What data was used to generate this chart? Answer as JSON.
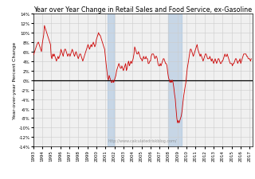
{
  "title": "Year over Year Change in Retail Sales and Food Service, ex-Gasoline",
  "ylabel": "Year-over-year Percent Change",
  "watermark": "http://www.calculatedriskblog.com/",
  "ylim": [
    -14,
    14
  ],
  "yticks": [
    -14,
    -12,
    -10,
    -8,
    -6,
    -4,
    -2,
    0,
    2,
    4,
    6,
    8,
    10,
    12,
    14
  ],
  "recession_shades": [
    {
      "xmin": 2001.25,
      "xmax": 2001.92
    },
    {
      "xmin": 2007.92,
      "xmax": 2009.5
    }
  ],
  "line_color": "#cc0000",
  "recession_color": "#adc6e0",
  "recession_alpha": 0.6,
  "background_color": "#f0f0f0",
  "grid_color": "#cccccc",
  "zero_line_color": "black",
  "title_fontsize": 5.8,
  "label_fontsize": 4.5,
  "tick_fontsize": 4.0,
  "watermark_fontsize": 3.5,
  "xlim": [
    1993,
    2017.3
  ],
  "data_x": [
    1993.0,
    1993.08,
    1993.17,
    1993.25,
    1993.33,
    1993.42,
    1993.5,
    1993.58,
    1993.67,
    1993.75,
    1993.83,
    1993.92,
    1994.0,
    1994.08,
    1994.17,
    1994.25,
    1994.33,
    1994.42,
    1994.5,
    1994.58,
    1994.67,
    1994.75,
    1994.83,
    1994.92,
    1995.0,
    1995.08,
    1995.17,
    1995.25,
    1995.33,
    1995.42,
    1995.5,
    1995.58,
    1995.67,
    1995.75,
    1995.83,
    1995.92,
    1996.0,
    1996.08,
    1996.17,
    1996.25,
    1996.33,
    1996.42,
    1996.5,
    1996.58,
    1996.67,
    1996.75,
    1996.83,
    1996.92,
    1997.0,
    1997.08,
    1997.17,
    1997.25,
    1997.33,
    1997.42,
    1997.5,
    1997.58,
    1997.67,
    1997.75,
    1997.83,
    1997.92,
    1998.0,
    1998.08,
    1998.17,
    1998.25,
    1998.33,
    1998.42,
    1998.5,
    1998.58,
    1998.67,
    1998.75,
    1998.83,
    1998.92,
    1999.0,
    1999.08,
    1999.17,
    1999.25,
    1999.33,
    1999.42,
    1999.5,
    1999.58,
    1999.67,
    1999.75,
    1999.83,
    1999.92,
    2000.0,
    2000.08,
    2000.17,
    2000.25,
    2000.33,
    2000.42,
    2000.5,
    2000.58,
    2000.67,
    2000.75,
    2000.83,
    2000.92,
    2001.0,
    2001.08,
    2001.17,
    2001.25,
    2001.33,
    2001.42,
    2001.5,
    2001.58,
    2001.67,
    2001.75,
    2001.83,
    2001.92,
    2002.0,
    2002.08,
    2002.17,
    2002.25,
    2002.33,
    2002.42,
    2002.5,
    2002.58,
    2002.67,
    2002.75,
    2002.83,
    2002.92,
    2003.0,
    2003.08,
    2003.17,
    2003.25,
    2003.33,
    2003.42,
    2003.5,
    2003.58,
    2003.67,
    2003.75,
    2003.83,
    2003.92,
    2004.0,
    2004.08,
    2004.17,
    2004.25,
    2004.33,
    2004.42,
    2004.5,
    2004.58,
    2004.67,
    2004.75,
    2004.83,
    2004.92,
    2005.0,
    2005.08,
    2005.17,
    2005.25,
    2005.33,
    2005.42,
    2005.5,
    2005.58,
    2005.67,
    2005.75,
    2005.83,
    2005.92,
    2006.0,
    2006.08,
    2006.17,
    2006.25,
    2006.33,
    2006.42,
    2006.5,
    2006.58,
    2006.67,
    2006.75,
    2006.83,
    2006.92,
    2007.0,
    2007.08,
    2007.17,
    2007.25,
    2007.33,
    2007.42,
    2007.5,
    2007.58,
    2007.67,
    2007.75,
    2007.83,
    2007.92,
    2008.0,
    2008.08,
    2008.17,
    2008.25,
    2008.33,
    2008.42,
    2008.5,
    2008.58,
    2008.67,
    2008.75,
    2008.83,
    2008.92,
    2009.0,
    2009.08,
    2009.17,
    2009.25,
    2009.33,
    2009.42,
    2009.5,
    2009.58,
    2009.67,
    2009.75,
    2009.83,
    2009.92,
    2010.0,
    2010.08,
    2010.17,
    2010.25,
    2010.33,
    2010.42,
    2010.5,
    2010.58,
    2010.67,
    2010.75,
    2010.83,
    2010.92,
    2011.0,
    2011.08,
    2011.17,
    2011.25,
    2011.33,
    2011.42,
    2011.5,
    2011.58,
    2011.67,
    2011.75,
    2011.83,
    2011.92,
    2012.0,
    2012.08,
    2012.17,
    2012.25,
    2012.33,
    2012.42,
    2012.5,
    2012.58,
    2012.67,
    2012.75,
    2012.83,
    2012.92,
    2013.0,
    2013.08,
    2013.17,
    2013.25,
    2013.33,
    2013.42,
    2013.5,
    2013.58,
    2013.67,
    2013.75,
    2013.83,
    2013.92,
    2014.0,
    2014.08,
    2014.17,
    2014.25,
    2014.33,
    2014.42,
    2014.5,
    2014.58,
    2014.67,
    2014.75,
    2014.83,
    2014.92,
    2015.0,
    2015.08,
    2015.17,
    2015.25,
    2015.33,
    2015.42,
    2015.5,
    2015.58,
    2015.67,
    2015.75,
    2015.83,
    2015.92,
    2016.0,
    2016.08,
    2016.17,
    2016.25,
    2016.33,
    2016.42,
    2016.5,
    2016.58,
    2016.67,
    2016.75,
    2016.83,
    2016.92,
    2017.0,
    2017.08,
    2017.17
  ],
  "data_y": [
    5.2,
    5.5,
    6.0,
    6.5,
    7.0,
    7.5,
    7.8,
    8.0,
    7.5,
    7.0,
    6.5,
    6.0,
    7.5,
    8.5,
    9.5,
    11.5,
    11.0,
    10.5,
    10.0,
    9.5,
    9.0,
    8.5,
    8.0,
    7.5,
    5.0,
    4.5,
    5.5,
    5.0,
    5.5,
    5.0,
    4.5,
    4.0,
    4.5,
    5.0,
    4.5,
    5.0,
    5.5,
    6.5,
    6.0,
    5.5,
    5.0,
    6.0,
    6.5,
    6.5,
    6.0,
    5.5,
    5.0,
    5.5,
    5.5,
    5.0,
    5.5,
    6.0,
    6.5,
    6.0,
    5.5,
    5.0,
    5.5,
    6.0,
    5.5,
    5.0,
    4.5,
    5.0,
    5.5,
    5.5,
    5.0,
    4.5,
    4.0,
    4.5,
    5.0,
    5.5,
    6.0,
    6.5,
    7.0,
    7.5,
    7.0,
    6.5,
    7.0,
    7.5,
    7.0,
    7.5,
    8.0,
    7.5,
    7.0,
    7.5,
    8.5,
    9.0,
    9.5,
    10.0,
    9.5,
    9.5,
    9.0,
    8.5,
    8.0,
    7.5,
    7.0,
    6.5,
    5.0,
    3.5,
    2.0,
    0.5,
    0.0,
    1.0,
    0.5,
    0.0,
    -0.5,
    -0.5,
    0.0,
    -0.5,
    0.0,
    0.5,
    1.0,
    2.0,
    2.5,
    3.0,
    3.5,
    3.0,
    2.5,
    2.5,
    3.0,
    2.5,
    2.0,
    2.5,
    3.0,
    3.5,
    2.0,
    2.5,
    3.5,
    4.0,
    3.0,
    3.5,
    4.0,
    3.5,
    4.0,
    4.5,
    5.5,
    7.0,
    6.5,
    6.0,
    5.5,
    5.5,
    6.0,
    5.5,
    5.0,
    4.5,
    4.5,
    4.0,
    4.5,
    5.0,
    4.5,
    4.5,
    5.0,
    4.5,
    4.5,
    3.5,
    3.5,
    4.0,
    4.0,
    5.0,
    5.5,
    5.5,
    5.5,
    5.0,
    4.5,
    5.0,
    5.0,
    4.5,
    3.5,
    3.0,
    3.0,
    3.5,
    3.0,
    3.5,
    4.0,
    4.5,
    4.5,
    4.0,
    3.5,
    3.5,
    3.0,
    1.5,
    0.5,
    0.0,
    -0.5,
    0.0,
    -0.5,
    0.0,
    -0.5,
    -1.5,
    -3.0,
    -4.0,
    -6.0,
    -8.0,
    -9.0,
    -8.5,
    -9.0,
    -8.5,
    -8.0,
    -7.5,
    -6.5,
    -5.0,
    -3.5,
    -2.5,
    -1.5,
    -0.5,
    1.0,
    2.5,
    3.5,
    4.5,
    5.5,
    6.5,
    6.5,
    6.0,
    5.5,
    5.0,
    5.5,
    6.0,
    6.5,
    7.0,
    7.5,
    6.5,
    6.0,
    5.5,
    5.0,
    5.5,
    5.0,
    4.5,
    4.0,
    4.5,
    5.0,
    5.5,
    5.5,
    5.0,
    4.5,
    4.5,
    4.5,
    5.0,
    4.5,
    4.0,
    4.5,
    4.0,
    3.5,
    4.0,
    4.5,
    4.0,
    3.5,
    4.0,
    4.5,
    4.5,
    4.0,
    3.5,
    3.5,
    4.0,
    4.0,
    4.5,
    5.0,
    5.5,
    5.0,
    5.0,
    5.5,
    5.0,
    4.5,
    4.0,
    3.5,
    3.5,
    3.5,
    3.0,
    3.5,
    3.5,
    4.0,
    4.5,
    4.5,
    4.0,
    3.5,
    4.0,
    4.0,
    4.5,
    3.5,
    4.0,
    4.5,
    5.0,
    5.5,
    5.5,
    5.5,
    5.5,
    5.0,
    5.0,
    4.5,
    4.5,
    4.5,
    4.0,
    4.5
  ]
}
